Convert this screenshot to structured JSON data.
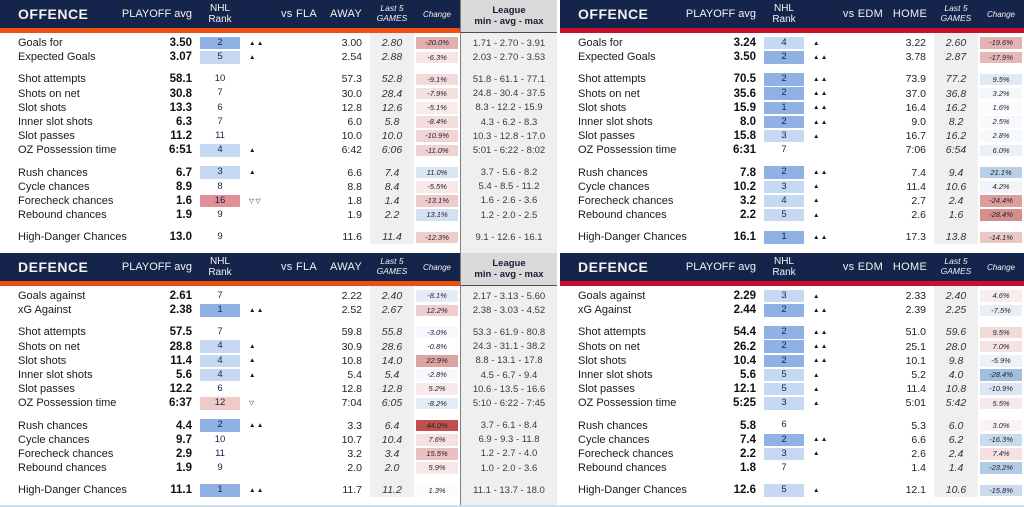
{
  "colors": {
    "navy": "#15244a",
    "accent_left": "#ee4f10",
    "accent_right": "#c8102e",
    "rank_strong_blue": "#8fb1e3",
    "rank_light_blue": "#c7d8f3",
    "rank_pink": "#f0c9c9",
    "rank_red": "#e18f99",
    "change_good_blue": "#6e9bcd",
    "change_bad_red": "#c0504d",
    "last5_column_bg": "#efefef",
    "bottom_strip": "#cfe0ef"
  },
  "league_header": {
    "line1": "League",
    "line2": "min - avg - max"
  },
  "quadrants": [
    {
      "id": "offence-away",
      "title": "OFFENCE",
      "section": "offence",
      "accent": "#ee4f10",
      "has_league": true,
      "headers": {
        "avg": "PLAYOFF avg",
        "rank1": "NHL",
        "rank2": "Rank",
        "vs": "vs FLA",
        "venue": "AWAY",
        "last51": "Last 5",
        "last52": "GAMES",
        "change": "Change"
      },
      "groups": [
        [
          {
            "label": "Goals for",
            "avg": "3.50",
            "rank": 2,
            "venue": "3.00",
            "last5": "2.80",
            "change": "-20.0%",
            "league": "1.71 - 2.70 - 3.91"
          },
          {
            "label": "Expected Goals",
            "avg": "3.07",
            "rank": 5,
            "venue": "2.54",
            "last5": "2.88",
            "change": "-6.3%",
            "league": "2.03 - 2.70 - 3.53"
          }
        ],
        [
          {
            "label": "Shot attempts",
            "avg": "58.1",
            "rank": 10,
            "venue": "57.3",
            "last5": "52.8",
            "change": "-9.1%",
            "league": "51.8 - 61.1 - 77.1"
          },
          {
            "label": "Shots on net",
            "avg": "30.8",
            "rank": 7,
            "venue": "30.0",
            "last5": "28.4",
            "change": "-7.9%",
            "league": "24.8 - 30.4 - 37.5"
          },
          {
            "label": "Slot shots",
            "avg": "13.3",
            "rank": 6,
            "venue": "12.8",
            "last5": "12.6",
            "change": "-5.1%",
            "league": "8.3 - 12.2 - 15.9"
          },
          {
            "label": "Inner slot shots",
            "avg": "6.3",
            "rank": 7,
            "venue": "6.0",
            "last5": "5.8",
            "change": "-8.4%",
            "league": "4.3 - 6.2 - 8.3"
          },
          {
            "label": "Slot passes",
            "avg": "11.2",
            "rank": 11,
            "venue": "10.0",
            "last5": "10.0",
            "change": "-10.9%",
            "league": "10.3 - 12.8 - 17.0"
          },
          {
            "label": "OZ Possession time",
            "avg": "6:51",
            "rank": 4,
            "venue": "6:42",
            "last5": "6:06",
            "change": "-11.0%",
            "league": "5:01 - 6:22 - 8:02"
          }
        ],
        [
          {
            "label": "Rush chances",
            "avg": "6.7",
            "rank": 3,
            "venue": "6.6",
            "last5": "7.4",
            "change": "11.0%",
            "league": "3.7 - 5.6 - 8.2"
          },
          {
            "label": "Cycle chances",
            "avg": "8.9",
            "rank": 8,
            "venue": "8.8",
            "last5": "8.4",
            "change": "-5.5%",
            "league": "5.4 - 8.5 - 11.2"
          },
          {
            "label": "Forecheck chances",
            "avg": "1.6",
            "rank": 16,
            "venue": "1.8",
            "last5": "1.4",
            "change": "-13.1%",
            "league": "1.6 - 2.6 - 3.6"
          },
          {
            "label": "Rebound chances",
            "avg": "1.9",
            "rank": 9,
            "venue": "1.9",
            "last5": "2.2",
            "change": "13.1%",
            "league": "1.2 - 2.0 - 2.5"
          }
        ],
        [
          {
            "label": "High-Danger Chances",
            "avg": "13.0",
            "rank": 9,
            "venue": "11.6",
            "last5": "11.4",
            "change": "-12.3%",
            "league": "9.1 - 12.6 - 16.1"
          }
        ]
      ]
    },
    {
      "id": "offence-home",
      "title": "OFFENCE",
      "section": "offence",
      "accent": "#c8102e",
      "has_league": false,
      "headers": {
        "avg": "PLAYOFF avg",
        "rank1": "NHL",
        "rank2": "Rank",
        "vs": "vs EDM",
        "venue": "HOME",
        "last51": "Last 5",
        "last52": "GAMES",
        "change": "Change"
      },
      "groups": [
        [
          {
            "label": "Goals for",
            "avg": "3.24",
            "rank": 4,
            "venue": "3.22",
            "last5": "2.60",
            "change": "-19.6%"
          },
          {
            "label": "Expected Goals",
            "avg": "3.50",
            "rank": 2,
            "venue": "3.78",
            "last5": "2.87",
            "change": "-17.9%"
          }
        ],
        [
          {
            "label": "Shot attempts",
            "avg": "70.5",
            "rank": 2,
            "venue": "73.9",
            "last5": "77.2",
            "change": "9.5%"
          },
          {
            "label": "Shots on net",
            "avg": "35.6",
            "rank": 2,
            "venue": "37.0",
            "last5": "36.8",
            "change": "3.2%"
          },
          {
            "label": "Slot shots",
            "avg": "15.9",
            "rank": 1,
            "venue": "16.4",
            "last5": "16.2",
            "change": "1.6%"
          },
          {
            "label": "Inner slot shots",
            "avg": "8.0",
            "rank": 2,
            "venue": "9.0",
            "last5": "8.2",
            "change": "2.5%"
          },
          {
            "label": "Slot passes",
            "avg": "15.8",
            "rank": 3,
            "venue": "16.7",
            "last5": "16.2",
            "change": "2.8%"
          },
          {
            "label": "OZ Possession time",
            "avg": "6:31",
            "rank": 7,
            "venue": "7:06",
            "last5": "6:54",
            "change": "6.0%"
          }
        ],
        [
          {
            "label": "Rush chances",
            "avg": "7.8",
            "rank": 2,
            "venue": "7.4",
            "last5": "9.4",
            "change": "21.1%"
          },
          {
            "label": "Cycle chances",
            "avg": "10.2",
            "rank": 3,
            "venue": "11.4",
            "last5": "10.6",
            "change": "4.2%"
          },
          {
            "label": "Forecheck chances",
            "avg": "3.2",
            "rank": 4,
            "venue": "2.7",
            "last5": "2.4",
            "change": "-24.4%"
          },
          {
            "label": "Rebound chances",
            "avg": "2.2",
            "rank": 5,
            "venue": "2.6",
            "last5": "1.6",
            "change": "-28.4%"
          }
        ],
        [
          {
            "label": "High-Danger Chances",
            "avg": "16.1",
            "rank": 1,
            "venue": "17.3",
            "last5": "13.8",
            "change": "-14.1%"
          }
        ]
      ]
    },
    {
      "id": "defence-away",
      "title": "DEFENCE",
      "section": "defence",
      "accent": "#ee4f10",
      "has_league": true,
      "headers": {
        "avg": "PLAYOFF avg",
        "rank1": "NHL",
        "rank2": "Rank",
        "vs": "vs FLA",
        "venue": "AWAY",
        "last51": "Last 5",
        "last52": "GAMES",
        "change": "Change"
      },
      "groups": [
        [
          {
            "label": "Goals against",
            "avg": "2.61",
            "rank": 7,
            "venue": "2.22",
            "last5": "2.40",
            "change": "-8.1%",
            "league": "2.17 - 3.13 - 5.60"
          },
          {
            "label": "xG Against",
            "avg": "2.38",
            "rank": 1,
            "venue": "2.52",
            "last5": "2.67",
            "change": "12.2%",
            "league": "2.38 - 3.03 - 4.52"
          }
        ],
        [
          {
            "label": "Shot attempts",
            "avg": "57.5",
            "rank": 7,
            "venue": "59.8",
            "last5": "55.8",
            "change": "-3.0%",
            "league": "53.3 - 61.9 - 80.8"
          },
          {
            "label": "Shots on net",
            "avg": "28.8",
            "rank": 4,
            "venue": "30.9",
            "last5": "28.6",
            "change": "-0.8%",
            "league": "24.3 - 31.1 - 38.2"
          },
          {
            "label": "Slot shots",
            "avg": "11.4",
            "rank": 4,
            "venue": "10.8",
            "last5": "14.0",
            "change": "22.9%",
            "league": "8.8 - 13.1 - 17.8"
          },
          {
            "label": "Inner slot shots",
            "avg": "5.6",
            "rank": 4,
            "venue": "5.4",
            "last5": "5.4",
            "change": "-2.8%",
            "league": "4.5 - 6.7 - 9.4"
          },
          {
            "label": "Slot passes",
            "avg": "12.2",
            "rank": 6,
            "venue": "12.8",
            "last5": "12.8",
            "change": "5.2%",
            "league": "10.6 - 13.5 - 16.6"
          },
          {
            "label": "OZ Possession time",
            "avg": "6:37",
            "rank": 12,
            "venue": "7:04",
            "last5": "6:05",
            "change": "-8.2%",
            "league": "5:10 - 6:22 - 7:45"
          }
        ],
        [
          {
            "label": "Rush chances",
            "avg": "4.4",
            "rank": 2,
            "venue": "3.3",
            "last5": "6.4",
            "change": "44.0%",
            "league": "3.7 - 6.1 - 8.4"
          },
          {
            "label": "Cycle chances",
            "avg": "9.7",
            "rank": 10,
            "venue": "10.7",
            "last5": "10.4",
            "change": "7.6%",
            "league": "6.9 - 9.3 - 11.8"
          },
          {
            "label": "Forecheck chances",
            "avg": "2.9",
            "rank": 11,
            "venue": "3.2",
            "last5": "3.4",
            "change": "15.5%",
            "league": "1.2 - 2.7 - 4.0"
          },
          {
            "label": "Rebound chances",
            "avg": "1.9",
            "rank": 9,
            "venue": "2.0",
            "last5": "2.0",
            "change": "5.9%",
            "league": "1.0 - 2.0 - 3.6"
          }
        ],
        [
          {
            "label": "High-Danger Chances",
            "avg": "11.1",
            "rank": 1,
            "venue": "11.7",
            "last5": "11.2",
            "change": "1.3%",
            "league": "11.1 - 13.7 - 18.0"
          }
        ]
      ]
    },
    {
      "id": "defence-home",
      "title": "DEFENCE",
      "section": "defence",
      "accent": "#c8102e",
      "has_league": false,
      "headers": {
        "avg": "PLAYOFF avg",
        "rank1": "NHL",
        "rank2": "Rank",
        "vs": "vs EDM",
        "venue": "HOME",
        "last51": "Last 5",
        "last52": "GAMES",
        "change": "Change"
      },
      "groups": [
        [
          {
            "label": "Goals against",
            "avg": "2.29",
            "rank": 3,
            "venue": "2.33",
            "last5": "2.40",
            "change": "4.6%"
          },
          {
            "label": "xG Against",
            "avg": "2.44",
            "rank": 2,
            "venue": "2.39",
            "last5": "2.25",
            "change": "-7.5%"
          }
        ],
        [
          {
            "label": "Shot attempts",
            "avg": "54.4",
            "rank": 2,
            "venue": "51.0",
            "last5": "59.6",
            "change": "9.5%"
          },
          {
            "label": "Shots on net",
            "avg": "26.2",
            "rank": 2,
            "venue": "25.1",
            "last5": "28.0",
            "change": "7.0%"
          },
          {
            "label": "Slot shots",
            "avg": "10.4",
            "rank": 2,
            "venue": "10.1",
            "last5": "9.8",
            "change": "-5.9%"
          },
          {
            "label": "Inner slot shots",
            "avg": "5.6",
            "rank": 5,
            "venue": "5.2",
            "last5": "4.0",
            "change": "-28.4%"
          },
          {
            "label": "Slot passes",
            "avg": "12.1",
            "rank": 5,
            "venue": "11.4",
            "last5": "10.8",
            "change": "-10.9%"
          },
          {
            "label": "OZ Possession time",
            "avg": "5:25",
            "rank": 3,
            "venue": "5:01",
            "last5": "5:42",
            "change": "5.5%"
          }
        ],
        [
          {
            "label": "Rush chances",
            "avg": "5.8",
            "rank": 6,
            "venue": "5.3",
            "last5": "6.0",
            "change": "3.0%"
          },
          {
            "label": "Cycle chances",
            "avg": "7.4",
            "rank": 2,
            "venue": "6.6",
            "last5": "6.2",
            "change": "-16.3%"
          },
          {
            "label": "Forecheck chances",
            "avg": "2.2",
            "rank": 3,
            "venue": "2.6",
            "last5": "2.4",
            "change": "7.4%"
          },
          {
            "label": "Rebound chances",
            "avg": "1.8",
            "rank": 7,
            "venue": "1.4",
            "last5": "1.4",
            "change": "-23.2%"
          }
        ],
        [
          {
            "label": "High-Danger Chances",
            "avg": "12.6",
            "rank": 5,
            "venue": "12.1",
            "last5": "10.6",
            "change": "-15.8%"
          }
        ]
      ]
    }
  ]
}
